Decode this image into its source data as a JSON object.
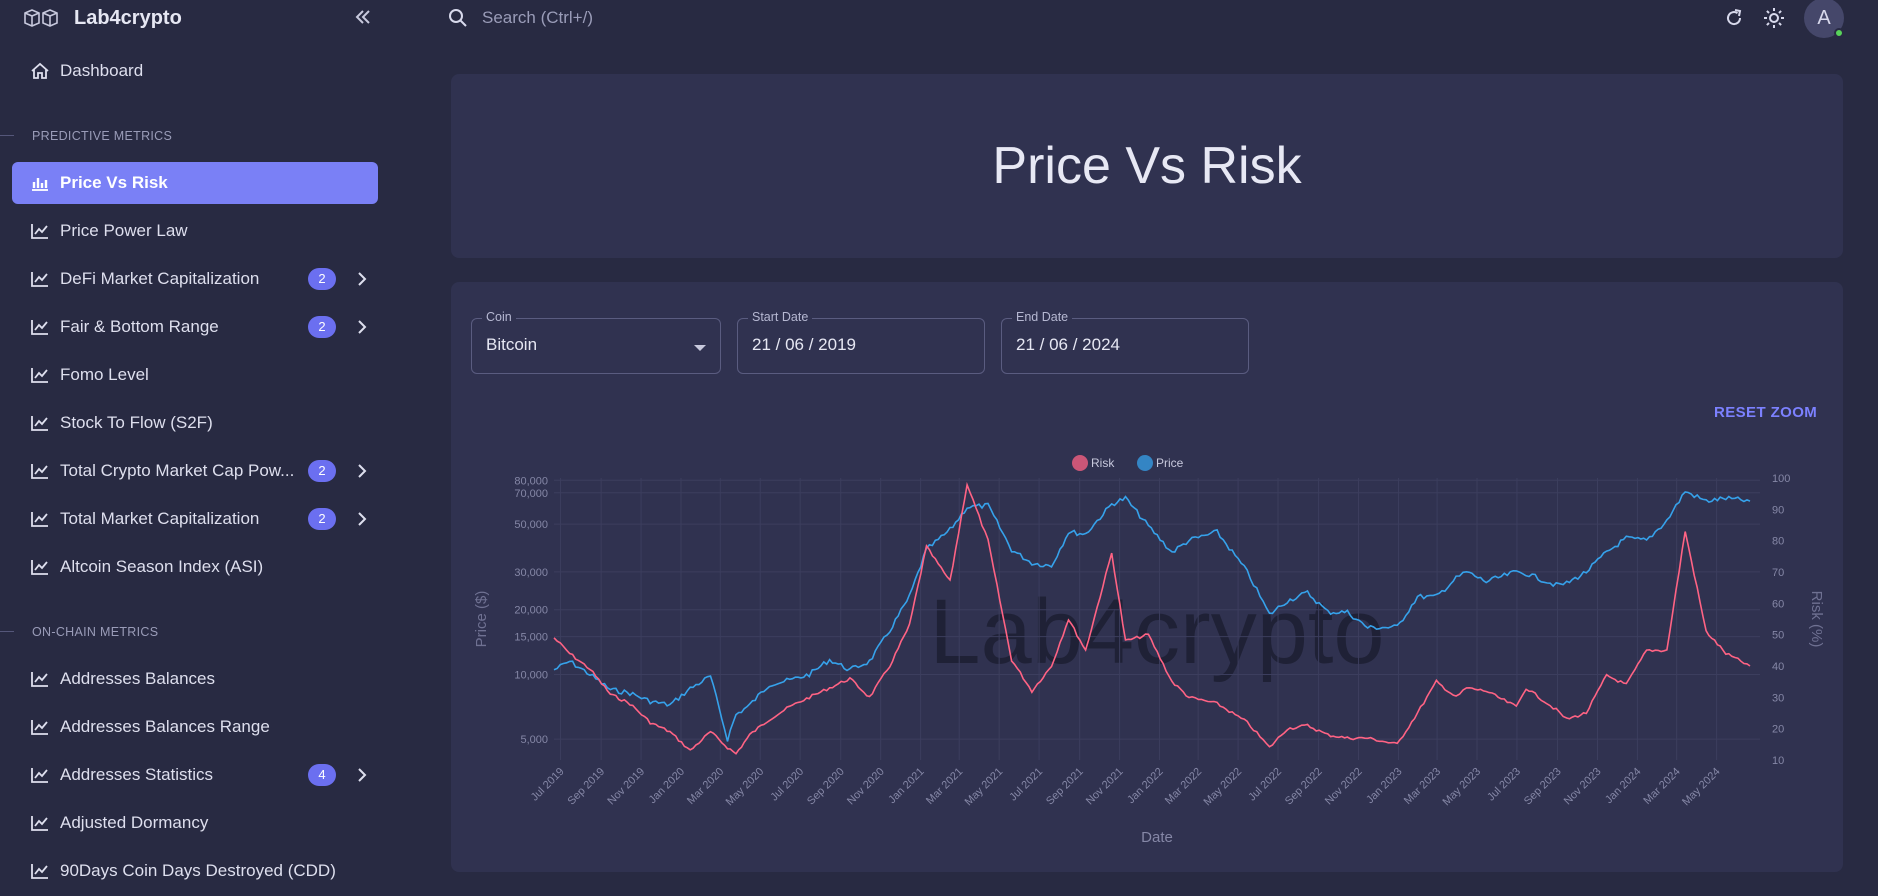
{
  "app": {
    "name": "Lab4crypto"
  },
  "search": {
    "placeholder": "Search (Ctrl+/)"
  },
  "user": {
    "avatar_letter": "A"
  },
  "sidebar": {
    "top_item": "Dashboard",
    "sections": [
      "PREDICTIVE METRICS",
      "ON-CHAIN METRICS"
    ],
    "predictive": [
      {
        "label": "Price Vs Risk",
        "active": true
      },
      {
        "label": "Price Power Law"
      },
      {
        "label": "DeFi Market Capitalization",
        "badge": "2"
      },
      {
        "label": "Fair & Bottom Range",
        "badge": "2"
      },
      {
        "label": "Fomo Level"
      },
      {
        "label": "Stock To Flow (S2F)"
      },
      {
        "label": "Total Crypto Market Cap Pow...",
        "badge": "2"
      },
      {
        "label": "Total Market Capitalization",
        "badge": "2"
      },
      {
        "label": "Altcoin Season Index (ASI)"
      }
    ],
    "onchain": [
      {
        "label": "Addresses Balances"
      },
      {
        "label": "Addresses Balances Range"
      },
      {
        "label": "Addresses Statistics",
        "badge": "4"
      },
      {
        "label": "Adjusted Dormancy"
      },
      {
        "label": "90Days Coin Days Destroyed (CDD)"
      }
    ]
  },
  "page": {
    "title": "Price Vs Risk"
  },
  "filters": {
    "coin_label": "Coin",
    "coin_value": "Bitcoin",
    "start_label": "Start Date",
    "start_value": "21 / 06 / 2019",
    "end_label": "End Date",
    "end_value": "21 / 06 / 2024"
  },
  "reset_zoom": "RESET ZOOM",
  "chart_data": {
    "type": "line",
    "watermark": "Lab4crypto",
    "xlabel": "Date",
    "y_left_label": "Price ($)",
    "y_right_label": "Risk (%)",
    "y_left_scale": "log",
    "y_left_ticks": [
      "80,000",
      "70,000",
      "50,000",
      "30,000",
      "20,000",
      "15,000",
      "10,000",
      "5,000"
    ],
    "y_left_tick_values": [
      80000,
      70000,
      50000,
      30000,
      20000,
      15000,
      10000,
      5000
    ],
    "y_right_ticks": [
      "100",
      "90",
      "80",
      "70",
      "60",
      "50",
      "40",
      "30",
      "20",
      "10"
    ],
    "y_right_range": [
      10,
      100
    ],
    "x_ticks": [
      "Jul 2019",
      "Sep 2019",
      "Nov 2019",
      "Jan 2020",
      "Mar 2020",
      "May 2020",
      "Jul 2020",
      "Sep 2020",
      "Nov 2020",
      "Jan 2021",
      "Mar 2021",
      "May 2021",
      "Jul 2021",
      "Sep 2021",
      "Nov 2021",
      "Jan 2022",
      "Mar 2022",
      "May 2022",
      "Jul 2022",
      "Sep 2022",
      "Nov 2022",
      "Jan 2023",
      "Mar 2023",
      "May 2023",
      "Jul 2023",
      "Sep 2023",
      "Nov 2023",
      "Jan 2024",
      "Mar 2024",
      "May 2024"
    ],
    "legend": [
      "Risk",
      "Price"
    ],
    "colors": {
      "risk": "#ff6384",
      "price": "#36a2eb"
    },
    "x_dates": [
      "2019-06-21",
      "2019-07-15",
      "2019-08-15",
      "2019-09-15",
      "2019-10-15",
      "2019-11-15",
      "2019-12-15",
      "2020-01-15",
      "2020-02-15",
      "2020-03-12",
      "2020-03-25",
      "2020-04-15",
      "2020-05-15",
      "2020-06-15",
      "2020-07-15",
      "2020-08-15",
      "2020-09-15",
      "2020-10-15",
      "2020-11-15",
      "2020-12-15",
      "2021-01-10",
      "2021-02-15",
      "2021-03-13",
      "2021-04-14",
      "2021-05-20",
      "2021-06-20",
      "2021-07-20",
      "2021-08-15",
      "2021-09-10",
      "2021-10-20",
      "2021-11-10",
      "2021-12-15",
      "2022-01-20",
      "2022-02-15",
      "2022-03-30",
      "2022-05-15",
      "2022-06-18",
      "2022-07-15",
      "2022-08-15",
      "2022-09-15",
      "2022-10-15",
      "2022-11-15",
      "2022-12-30",
      "2023-01-30",
      "2023-02-28",
      "2023-03-30",
      "2023-04-15",
      "2023-05-15",
      "2023-06-30",
      "2023-07-15",
      "2023-08-30",
      "2023-09-15",
      "2023-10-15",
      "2023-11-15",
      "2023-12-15",
      "2024-01-15",
      "2024-02-15",
      "2024-03-14",
      "2024-04-15",
      "2024-05-15",
      "2024-06-21"
    ],
    "price": [
      10500,
      11500,
      10000,
      8500,
      8200,
      7500,
      7200,
      8600,
      9800,
      5000,
      6500,
      7200,
      9000,
      9400,
      10000,
      11700,
      10500,
      11500,
      16000,
      23000,
      38000,
      47000,
      60000,
      61000,
      38000,
      33000,
      32000,
      46000,
      45000,
      62000,
      66000,
      49000,
      37000,
      42000,
      46000,
      30000,
      19000,
      22000,
      24000,
      19500,
      19500,
      16500,
      16600,
      23000,
      23000,
      28000,
      30000,
      27000,
      30000,
      29500,
      26000,
      26500,
      30000,
      37000,
      43000,
      42000,
      52000,
      71000,
      64000,
      66000,
      64000
    ],
    "risk": [
      49,
      44,
      39,
      31,
      28,
      22,
      19,
      13,
      19,
      14,
      12,
      18,
      23,
      27,
      30,
      33,
      36,
      30,
      40,
      53,
      78,
      67,
      98,
      80,
      42,
      32,
      40,
      55,
      45,
      76,
      48,
      50,
      35,
      30,
      28,
      22,
      14,
      20,
      21,
      18,
      17,
      17,
      15,
      25,
      35,
      30,
      33,
      32,
      27,
      33,
      26,
      23,
      25,
      37,
      34,
      45,
      45,
      83,
      51,
      44,
      40
    ]
  }
}
